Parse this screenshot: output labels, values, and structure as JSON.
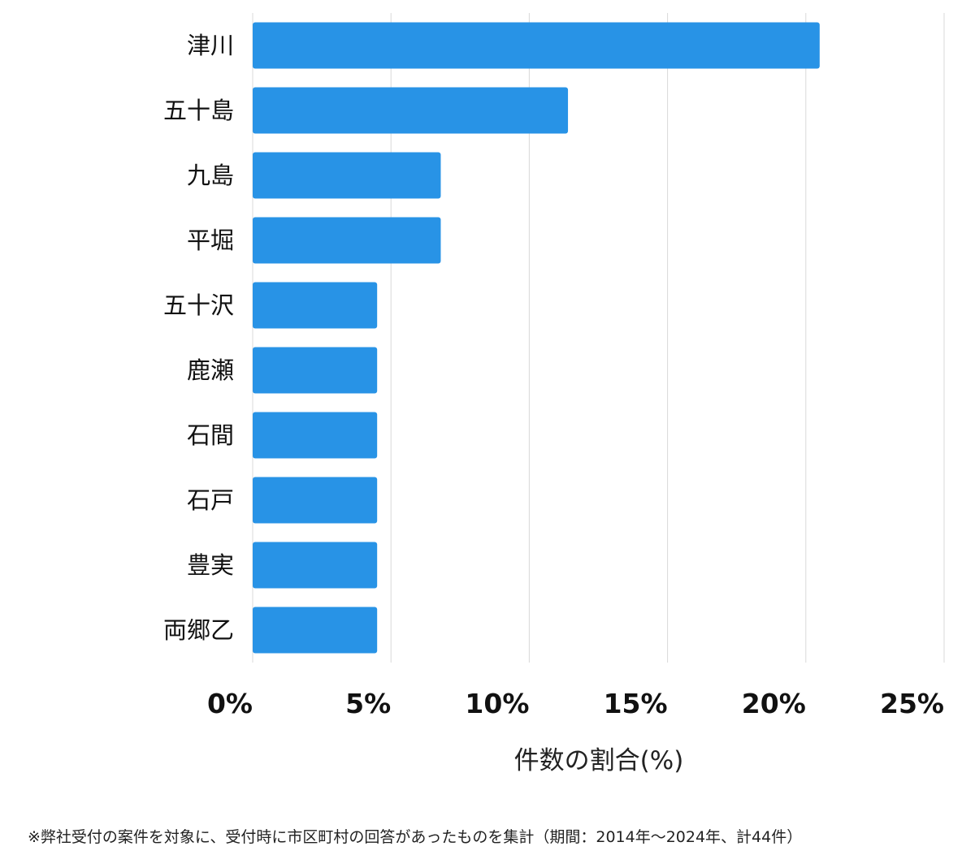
{
  "chart_data": {
    "type": "bar",
    "orientation": "horizontal",
    "categories": [
      "津川",
      "五十島",
      "九島",
      "平堀",
      "五十沢",
      "鹿瀬",
      "石間",
      "石戸",
      "豊実",
      "両郷乙"
    ],
    "values": [
      20.5,
      11.4,
      6.8,
      6.8,
      4.5,
      4.5,
      4.5,
      4.5,
      4.5,
      4.5
    ],
    "xlim": [
      0,
      25
    ],
    "xticks": [
      0,
      5,
      10,
      15,
      20,
      25
    ],
    "tick_labels": [
      "0%",
      "5%",
      "10%",
      "15%",
      "20%",
      "25%"
    ],
    "xlabel": "件数の割合(%)",
    "ylabel": "",
    "grid": "vertical",
    "bar_color": "#2893e6",
    "grid_color": "#d9d9d9"
  },
  "footnote": "※弊社受付の案件を対象に、受付時に市区町村の回答があったものを集計（期間：2014年～2024年、計44件）"
}
